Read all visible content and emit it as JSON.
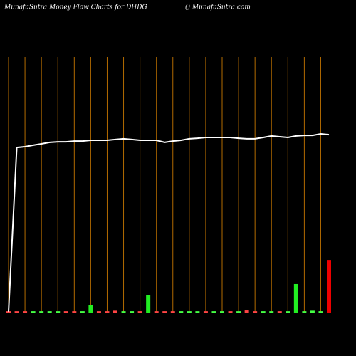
{
  "chart_data": {
    "type": "money-flow",
    "title": "MunafaSutra  Money Flow  Charts for DHDG",
    "subtitle": "() MunafaSutra.com",
    "categories": [
      null,
      null,
      null,
      null,
      null,
      null,
      null,
      null,
      null,
      null,
      null,
      null,
      null,
      null,
      null,
      null,
      null,
      null,
      null,
      null,
      null,
      null,
      null,
      null,
      null,
      null,
      null,
      null,
      null,
      null,
      null,
      null,
      null,
      null,
      null,
      null,
      null,
      null,
      null,
      null
    ],
    "ylim": [
      0,
      100
    ],
    "series": [
      {
        "type": "line",
        "color": "#ffffff",
        "values": [
          0.6,
          64.7,
          65,
          65.6,
          66.1,
          66.7,
          66.9,
          66.9,
          67.2,
          67.2,
          67.5,
          67.5,
          67.5,
          67.8,
          68.1,
          67.8,
          67.5,
          67.5,
          67.5,
          66.7,
          67.2,
          67.5,
          68.1,
          68.3,
          68.6,
          68.6,
          68.6,
          68.6,
          68.3,
          68.1,
          68.1,
          68.6,
          69.2,
          68.9,
          68.6,
          69.2,
          69.4,
          69.4,
          70,
          69.7
        ]
      },
      {
        "type": "bar",
        "values": [
          0.8,
          0.8,
          0.8,
          0.8,
          0.8,
          0.8,
          0.8,
          0.8,
          0.8,
          0.8,
          3.3,
          0.8,
          0.8,
          1,
          0.8,
          0.8,
          0.8,
          7.2,
          0.8,
          0.8,
          0.8,
          0.8,
          0.8,
          0.8,
          0.8,
          0.8,
          0.8,
          0.8,
          0.8,
          1.1,
          0.8,
          0.8,
          0.8,
          0.8,
          0.8,
          11.4,
          0.8,
          1,
          0.8,
          20.8
        ],
        "colors": [
          "#ff4444",
          "#ff4444",
          "#ff4444",
          "#44ff44",
          "#44ff44",
          "#44ff44",
          "#44ff44",
          "#ff4444",
          "#ff4444",
          "#44ff44",
          "#22ee22",
          "#ff4444",
          "#ff4444",
          "#ff4444",
          "#44ff44",
          "#44ff44",
          "#ff4444",
          "#22ee22",
          "#ff4444",
          "#ff4444",
          "#ff4444",
          "#44ff44",
          "#44ff44",
          "#44ff44",
          "#ff4444",
          "#44ff44",
          "#44ff44",
          "#ff4444",
          "#44ff44",
          "#ff4444",
          "#ff4444",
          "#44ff44",
          "#44ff44",
          "#ff4444",
          "#44ff44",
          "#22ee22",
          "#44ff44",
          "#44ff44",
          "#44ff44",
          "#ee0000"
        ]
      }
    ]
  }
}
